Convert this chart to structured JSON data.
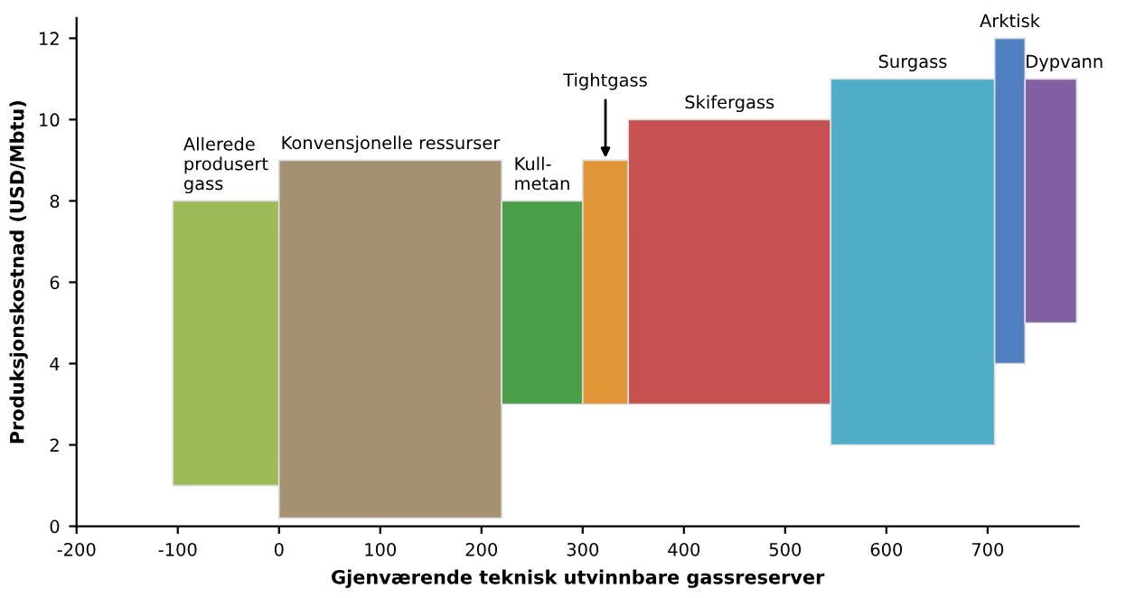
{
  "chart_data": {
    "type": "histogram",
    "xlabel": "Gjenværende teknisk utvinnbare gassreserver",
    "ylabel": "Produksjonskostnad (USD/Mbtu)",
    "bins": [
      -105,
      0,
      220,
      300,
      345,
      545,
      707,
      737,
      788
    ],
    "values": [
      7,
      8.8,
      5,
      6,
      7,
      9,
      8,
      6
    ],
    "base": [
      1,
      0.2,
      3,
      3,
      3,
      2,
      4,
      5
    ],
    "colors": [
      "#9bbb59",
      "#a39171",
      "#4a9e48",
      "#e09536",
      "#c75050",
      "#4fadc8",
      "#4f7fc0",
      "#8060a0"
    ],
    "xlim": [
      -200,
      790
    ],
    "ylim": [
      0,
      12.5
    ],
    "xticks": [
      -200,
      -100,
      0,
      100,
      200,
      300,
      400,
      500,
      600,
      700
    ],
    "yticks": [
      0,
      2,
      4,
      6,
      8,
      10,
      12
    ],
    "grid": false,
    "legend": false,
    "annotations": [
      {
        "text": "Allerede\nprodusert\ngass",
        "x": -52.5,
        "y": 8
      },
      {
        "text": "Konvensjonelle ressurser",
        "x": 110,
        "y": 9
      },
      {
        "text": "Kull-\nmetan",
        "x": 260,
        "y": 8
      },
      {
        "text": "Tightgass",
        "x": 322.5,
        "y": 9
      },
      {
        "text": "Skifergass",
        "x": 445,
        "y": 10
      },
      {
        "text": "Surgass",
        "x": 626,
        "y": 11
      },
      {
        "text": "Arktisk",
        "x": 722,
        "y": 12
      },
      {
        "text": "Dypvann",
        "x": 762.5,
        "y": 11
      }
    ]
  }
}
